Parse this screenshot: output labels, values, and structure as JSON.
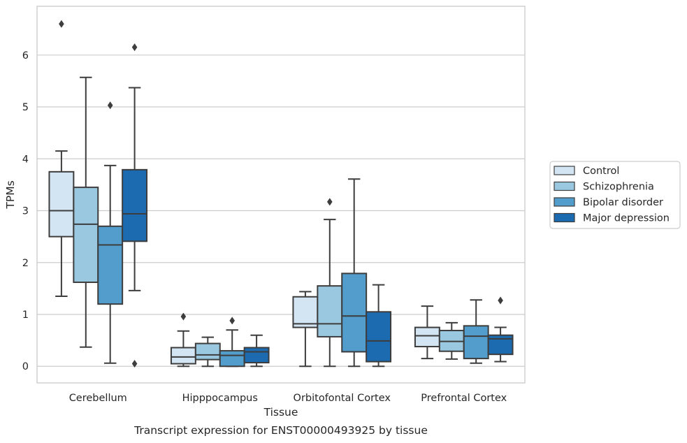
{
  "caption": "Transcript expression for ENST00000493925 by tissue",
  "chart_data": {
    "type": "boxplot",
    "xlabel": "Tissue",
    "ylabel": "TPMs",
    "ylim": [
      -0.32,
      6.94
    ],
    "yticks": [
      0,
      1,
      2,
      3,
      4,
      5,
      6
    ],
    "categories": [
      "Cerebellum",
      "Hipppocampus",
      "Orbitofontal Cortex",
      "Prefrontal Cortex"
    ],
    "grid": true,
    "legend_position": "right",
    "series": [
      {
        "name": "Control",
        "color": "#d3e4f3",
        "boxes": [
          {
            "whislo": 1.35,
            "q1": 2.5,
            "med": 3.0,
            "q3": 3.75,
            "whishi": 4.15,
            "fliers": [
              6.6
            ]
          },
          {
            "whislo": 0.0,
            "q1": 0.05,
            "med": 0.18,
            "q3": 0.36,
            "whishi": 0.68,
            "fliers": [
              0.96
            ]
          },
          {
            "whislo": 0.0,
            "q1": 0.75,
            "med": 0.82,
            "q3": 1.34,
            "whishi": 1.44,
            "fliers": []
          },
          {
            "whislo": 0.15,
            "q1": 0.38,
            "med": 0.59,
            "q3": 0.75,
            "whishi": 1.16,
            "fliers": []
          }
        ]
      },
      {
        "name": "Schizophrenia",
        "color": "#9ac8e0",
        "boxes": [
          {
            "whislo": 0.37,
            "q1": 1.62,
            "med": 2.74,
            "q3": 3.45,
            "whishi": 5.57,
            "fliers": []
          },
          {
            "whislo": 0.0,
            "q1": 0.13,
            "med": 0.22,
            "q3": 0.44,
            "whishi": 0.56,
            "fliers": []
          },
          {
            "whislo": 0.0,
            "q1": 0.57,
            "med": 0.82,
            "q3": 1.55,
            "whishi": 2.83,
            "fliers": [
              3.17
            ]
          },
          {
            "whislo": 0.14,
            "q1": 0.29,
            "med": 0.48,
            "q3": 0.69,
            "whishi": 0.84,
            "fliers": []
          }
        ]
      },
      {
        "name": "Bipolar disorder",
        "color": "#529dcc",
        "boxes": [
          {
            "whislo": 0.06,
            "q1": 1.2,
            "med": 2.34,
            "q3": 2.7,
            "whishi": 3.87,
            "fliers": [
              5.03
            ]
          },
          {
            "whislo": 0.0,
            "q1": 0.0,
            "med": 0.21,
            "q3": 0.3,
            "whishi": 0.7,
            "fliers": [
              0.88
            ]
          },
          {
            "whislo": 0.0,
            "q1": 0.28,
            "med": 0.97,
            "q3": 1.79,
            "whishi": 3.61,
            "fliers": []
          },
          {
            "whislo": 0.06,
            "q1": 0.15,
            "med": 0.58,
            "q3": 0.78,
            "whishi": 1.28,
            "fliers": []
          }
        ]
      },
      {
        "name": "Major depression",
        "color": "#1c6aaf",
        "boxes": [
          {
            "whislo": 1.46,
            "q1": 2.41,
            "med": 2.94,
            "q3": 3.79,
            "whishi": 5.37,
            "fliers": [
              6.15,
              0.05
            ]
          },
          {
            "whislo": 0.0,
            "q1": 0.07,
            "med": 0.28,
            "q3": 0.36,
            "whishi": 0.6,
            "fliers": []
          },
          {
            "whislo": 0.0,
            "q1": 0.09,
            "med": 0.49,
            "q3": 1.05,
            "whishi": 1.57,
            "fliers": []
          },
          {
            "whislo": 0.09,
            "q1": 0.23,
            "med": 0.53,
            "q3": 0.6,
            "whishi": 0.75,
            "fliers": [
              1.27
            ]
          }
        ]
      }
    ]
  }
}
